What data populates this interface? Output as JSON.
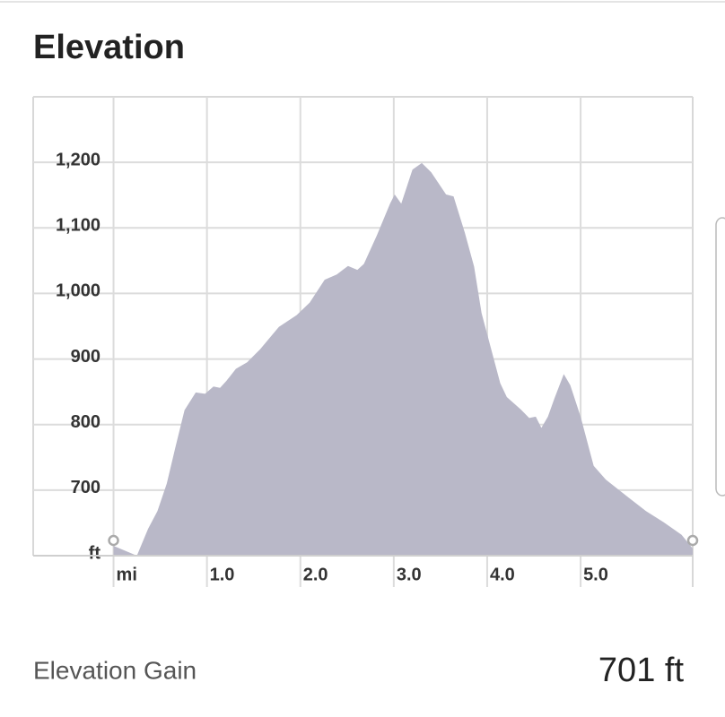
{
  "chart_data": {
    "type": "area",
    "title": "Elevation",
    "x": [
      0,
      0.25,
      0.37,
      0.47,
      0.57,
      0.66,
      0.76,
      0.88,
      0.98,
      1.07,
      1.14,
      1.21,
      1.31,
      1.43,
      1.57,
      1.77,
      1.96,
      2.1,
      2.26,
      2.39,
      2.51,
      2.61,
      2.68,
      2.82,
      2.96,
      3.01,
      3.08,
      3.2,
      3.3,
      3.4,
      3.56,
      3.64,
      3.76,
      3.86,
      3.94,
      4.14,
      4.21,
      4.36,
      4.45,
      4.52,
      4.58,
      4.65,
      4.72,
      4.82,
      4.89,
      5.0,
      5.14,
      5.27,
      5.51,
      5.7,
      5.89,
      6.08,
      6.2
    ],
    "values": [
      615,
      600,
      641,
      668,
      710,
      764,
      822,
      849,
      847,
      858,
      856,
      867,
      885,
      895,
      915,
      949,
      967,
      986,
      1021,
      1029,
      1042,
      1036,
      1045,
      1089,
      1137,
      1151,
      1137,
      1189,
      1199,
      1185,
      1151,
      1148,
      1093,
      1041,
      970,
      863,
      842,
      823,
      810,
      812,
      795,
      812,
      840,
      877,
      860,
      812,
      737,
      716,
      689,
      668,
      651,
      632,
      611
    ],
    "color": "#b9b8c8",
    "xlim": [
      -0.86,
      6.2
    ],
    "ylim": [
      600,
      1300
    ],
    "xticks": [
      {
        "value": 0,
        "label": "mi"
      },
      {
        "value": 1,
        "label": "1.0"
      },
      {
        "value": 2,
        "label": "2.0"
      },
      {
        "value": 3,
        "label": "3.0"
      },
      {
        "value": 4,
        "label": "4.0"
      },
      {
        "value": 5,
        "label": "5.0"
      }
    ],
    "yticks": [
      {
        "value": 600,
        "label": "ft"
      },
      700,
      800,
      900,
      {
        "value": 1000,
        "label": "1,000"
      },
      {
        "value": 1100,
        "label": "1,100"
      },
      {
        "value": 1200,
        "label": "1,200"
      }
    ],
    "grid": true
  },
  "summary": {
    "label": "Elevation Gain",
    "value": "701 ft"
  }
}
